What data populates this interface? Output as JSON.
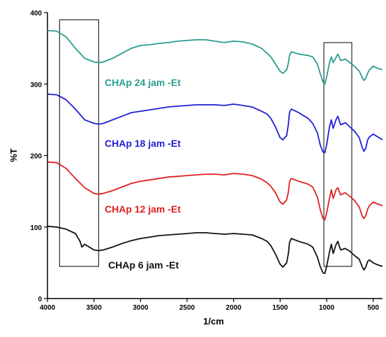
{
  "chart_data": {
    "type": "line",
    "xlabel": "1/cm",
    "ylabel": "%T",
    "xlim": [
      4000,
      400
    ],
    "ylim": [
      0,
      400
    ],
    "x_ticks": [
      4000,
      3500,
      3000,
      2500,
      2000,
      1500,
      1000,
      500
    ],
    "y_ticks": [
      0,
      100,
      200,
      300,
      400
    ],
    "highlight_regions": [
      {
        "x": [
          3870,
          3450
        ],
        "y": [
          45,
          390
        ]
      },
      {
        "x": [
          1030,
          730
        ],
        "y": [
          45,
          358
        ]
      }
    ],
    "series": [
      {
        "name": "CHAp 24 jam -Et",
        "color": "#2a9d8f",
        "points": [
          [
            4000,
            375
          ],
          [
            3900,
            374
          ],
          [
            3800,
            366
          ],
          [
            3700,
            350
          ],
          [
            3600,
            336
          ],
          [
            3500,
            331
          ],
          [
            3450,
            330
          ],
          [
            3400,
            331
          ],
          [
            3300,
            336
          ],
          [
            3200,
            343
          ],
          [
            3100,
            350
          ],
          [
            3000,
            354
          ],
          [
            2900,
            355
          ],
          [
            2800,
            357
          ],
          [
            2700,
            358
          ],
          [
            2600,
            360
          ],
          [
            2500,
            361
          ],
          [
            2400,
            362
          ],
          [
            2300,
            362
          ],
          [
            2200,
            360
          ],
          [
            2100,
            358
          ],
          [
            2000,
            360
          ],
          [
            1900,
            359
          ],
          [
            1800,
            356
          ],
          [
            1700,
            350
          ],
          [
            1640,
            343
          ],
          [
            1600,
            338
          ],
          [
            1550,
            328
          ],
          [
            1500,
            318
          ],
          [
            1470,
            315
          ],
          [
            1430,
            320
          ],
          [
            1410,
            330
          ],
          [
            1400,
            340
          ],
          [
            1380,
            345
          ],
          [
            1300,
            342
          ],
          [
            1200,
            340
          ],
          [
            1150,
            338
          ],
          [
            1100,
            328
          ],
          [
            1070,
            315
          ],
          [
            1040,
            303
          ],
          [
            1020,
            300
          ],
          [
            1000,
            310
          ],
          [
            970,
            330
          ],
          [
            950,
            338
          ],
          [
            930,
            330
          ],
          [
            900,
            337
          ],
          [
            880,
            342
          ],
          [
            850,
            333
          ],
          [
            800,
            335
          ],
          [
            750,
            330
          ],
          [
            700,
            325
          ],
          [
            650,
            318
          ],
          [
            620,
            310
          ],
          [
            600,
            305
          ],
          [
            580,
            308
          ],
          [
            560,
            315
          ],
          [
            540,
            320
          ],
          [
            500,
            325
          ],
          [
            450,
            322
          ],
          [
            400,
            320
          ]
        ]
      },
      {
        "name": "CHAp 18 jam -Et",
        "color": "#1f1fd6",
        "points": [
          [
            4000,
            286
          ],
          [
            3900,
            285
          ],
          [
            3800,
            278
          ],
          [
            3700,
            265
          ],
          [
            3600,
            250
          ],
          [
            3500,
            245
          ],
          [
            3450,
            244
          ],
          [
            3400,
            245
          ],
          [
            3300,
            250
          ],
          [
            3200,
            255
          ],
          [
            3100,
            260
          ],
          [
            3000,
            262
          ],
          [
            2900,
            264
          ],
          [
            2800,
            266
          ],
          [
            2700,
            268
          ],
          [
            2600,
            269
          ],
          [
            2500,
            270
          ],
          [
            2400,
            271
          ],
          [
            2300,
            271
          ],
          [
            2200,
            271
          ],
          [
            2100,
            270
          ],
          [
            2000,
            272
          ],
          [
            1900,
            270
          ],
          [
            1800,
            268
          ],
          [
            1700,
            262
          ],
          [
            1640,
            258
          ],
          [
            1600,
            252
          ],
          [
            1550,
            240
          ],
          [
            1500,
            225
          ],
          [
            1470,
            222
          ],
          [
            1430,
            228
          ],
          [
            1410,
            245
          ],
          [
            1400,
            260
          ],
          [
            1380,
            265
          ],
          [
            1300,
            260
          ],
          [
            1200,
            252
          ],
          [
            1150,
            245
          ],
          [
            1100,
            232
          ],
          [
            1070,
            215
          ],
          [
            1040,
            205
          ],
          [
            1020,
            204
          ],
          [
            1000,
            215
          ],
          [
            970,
            240
          ],
          [
            950,
            250
          ],
          [
            930,
            238
          ],
          [
            900,
            250
          ],
          [
            880,
            255
          ],
          [
            850,
            243
          ],
          [
            800,
            246
          ],
          [
            750,
            240
          ],
          [
            700,
            234
          ],
          [
            650,
            225
          ],
          [
            620,
            212
          ],
          [
            600,
            206
          ],
          [
            580,
            210
          ],
          [
            560,
            222
          ],
          [
            540,
            226
          ],
          [
            500,
            230
          ],
          [
            450,
            226
          ],
          [
            400,
            222
          ]
        ]
      },
      {
        "name": "CHAp 12 jam -Et",
        "color": "#e02020",
        "points": [
          [
            4000,
            191
          ],
          [
            3900,
            190
          ],
          [
            3800,
            182
          ],
          [
            3700,
            168
          ],
          [
            3600,
            155
          ],
          [
            3500,
            147
          ],
          [
            3450,
            146
          ],
          [
            3400,
            147
          ],
          [
            3300,
            151
          ],
          [
            3200,
            156
          ],
          [
            3100,
            161
          ],
          [
            3000,
            164
          ],
          [
            2900,
            166
          ],
          [
            2800,
            168
          ],
          [
            2700,
            170
          ],
          [
            2600,
            171
          ],
          [
            2500,
            172
          ],
          [
            2400,
            173
          ],
          [
            2300,
            174
          ],
          [
            2200,
            174
          ],
          [
            2100,
            173
          ],
          [
            2000,
            175
          ],
          [
            1900,
            174
          ],
          [
            1800,
            172
          ],
          [
            1700,
            167
          ],
          [
            1640,
            162
          ],
          [
            1600,
            157
          ],
          [
            1550,
            148
          ],
          [
            1500,
            135
          ],
          [
            1470,
            132
          ],
          [
            1430,
            138
          ],
          [
            1410,
            150
          ],
          [
            1400,
            163
          ],
          [
            1380,
            168
          ],
          [
            1300,
            164
          ],
          [
            1200,
            160
          ],
          [
            1150,
            156
          ],
          [
            1100,
            142
          ],
          [
            1070,
            125
          ],
          [
            1040,
            112
          ],
          [
            1020,
            110
          ],
          [
            1000,
            120
          ],
          [
            970,
            140
          ],
          [
            950,
            152
          ],
          [
            930,
            140
          ],
          [
            900,
            152
          ],
          [
            880,
            155
          ],
          [
            850,
            145
          ],
          [
            800,
            148
          ],
          [
            750,
            143
          ],
          [
            700,
            137
          ],
          [
            650,
            128
          ],
          [
            620,
            116
          ],
          [
            600,
            112
          ],
          [
            580,
            116
          ],
          [
            560,
            125
          ],
          [
            540,
            130
          ],
          [
            500,
            135
          ],
          [
            450,
            132
          ],
          [
            400,
            130
          ]
        ]
      },
      {
        "name": "CHAp 6 jam -Et",
        "color": "#111111",
        "points": [
          [
            4000,
            101
          ],
          [
            3900,
            100
          ],
          [
            3800,
            97
          ],
          [
            3700,
            91
          ],
          [
            3650,
            80
          ],
          [
            3630,
            72
          ],
          [
            3600,
            76
          ],
          [
            3500,
            68
          ],
          [
            3450,
            67
          ],
          [
            3400,
            68
          ],
          [
            3300,
            72
          ],
          [
            3200,
            77
          ],
          [
            3100,
            81
          ],
          [
            3000,
            84
          ],
          [
            2900,
            86
          ],
          [
            2800,
            88
          ],
          [
            2700,
            89
          ],
          [
            2600,
            90
          ],
          [
            2500,
            91
          ],
          [
            2400,
            92
          ],
          [
            2300,
            92
          ],
          [
            2200,
            91
          ],
          [
            2100,
            90
          ],
          [
            2000,
            91
          ],
          [
            1900,
            90
          ],
          [
            1800,
            89
          ],
          [
            1700,
            84
          ],
          [
            1640,
            80
          ],
          [
            1600,
            74
          ],
          [
            1550,
            62
          ],
          [
            1500,
            48
          ],
          [
            1470,
            44
          ],
          [
            1430,
            50
          ],
          [
            1410,
            64
          ],
          [
            1400,
            78
          ],
          [
            1380,
            84
          ],
          [
            1300,
            80
          ],
          [
            1200,
            76
          ],
          [
            1150,
            72
          ],
          [
            1100,
            58
          ],
          [
            1070,
            45
          ],
          [
            1040,
            36
          ],
          [
            1020,
            35
          ],
          [
            1000,
            45
          ],
          [
            970,
            65
          ],
          [
            950,
            76
          ],
          [
            930,
            63
          ],
          [
            900,
            75
          ],
          [
            880,
            80
          ],
          [
            850,
            68
          ],
          [
            800,
            70
          ],
          [
            750,
            66
          ],
          [
            700,
            60
          ],
          [
            650,
            55
          ],
          [
            620,
            45
          ],
          [
            600,
            40
          ],
          [
            580,
            44
          ],
          [
            560,
            52
          ],
          [
            540,
            54
          ],
          [
            500,
            50
          ],
          [
            450,
            47
          ],
          [
            400,
            45
          ]
        ]
      }
    ]
  }
}
